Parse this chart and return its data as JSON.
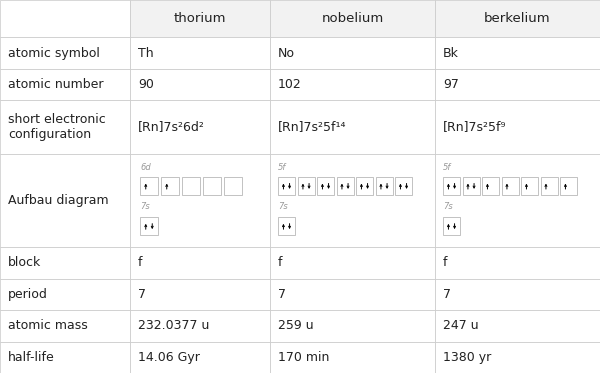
{
  "headers": [
    "",
    "thorium",
    "nobelium",
    "berkelium"
  ],
  "rows": [
    {
      "label": "atomic symbol",
      "values": [
        "Th",
        "No",
        "Bk"
      ]
    },
    {
      "label": "atomic number",
      "values": [
        "90",
        "102",
        "97"
      ]
    },
    {
      "label": "short electronic\nconfiguration",
      "values": [
        "[Rn]7s²6d²",
        "[Rn]7s²5f¹⁴",
        "[Rn]7s²5f⁹"
      ]
    },
    {
      "label": "Aufbau diagram",
      "values": [
        "aufbau_th",
        "aufbau_no",
        "aufbau_bk"
      ]
    },
    {
      "label": "block",
      "values": [
        "f",
        "f",
        "f"
      ]
    },
    {
      "label": "period",
      "values": [
        "7",
        "7",
        "7"
      ]
    },
    {
      "label": "atomic mass",
      "values": [
        "232.0377 u",
        "259 u",
        "247 u"
      ]
    },
    {
      "label": "half-life",
      "values": [
        "14.06 Gyr",
        "170 min",
        "1380 yr"
      ]
    }
  ],
  "aufbau_th_6d": [
    1,
    1,
    0,
    0,
    0
  ],
  "aufbau_th_7s": [
    2
  ],
  "aufbau_no_5f": [
    2,
    2,
    2,
    2,
    2,
    2,
    2
  ],
  "aufbau_no_7s": [
    2
  ],
  "aufbau_bk_5f": [
    2,
    2,
    1,
    1,
    1,
    1,
    1
  ],
  "aufbau_bk_7s": [
    2
  ],
  "header_color": "#f2f2f2",
  "cell_color": "#ffffff",
  "border_color": "#c8c8c8",
  "text_color": "#222222",
  "orbital_label_color": "#999999"
}
